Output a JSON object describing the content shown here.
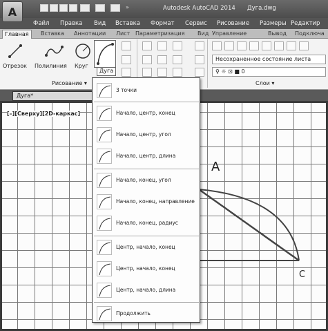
{
  "title": {
    "app": "Autodesk AutoCAD 2014",
    "file": "Дуга.dwg"
  },
  "menu": [
    "Файл",
    "Правка",
    "Вид",
    "Вставка",
    "Формат",
    "Сервис",
    "Рисование",
    "Размеры",
    "Редактир"
  ],
  "ribbon_tabs": [
    "Главная",
    "Вставка",
    "Аннотации",
    "Лист",
    "Параметризация",
    "Вид",
    "Управление",
    "Вывод",
    "Подключа"
  ],
  "ribbon": {
    "draw_tools": [
      "Отрезок",
      "Полилиния",
      "Круг",
      "Дуга"
    ],
    "panel_draw": "Рисование ▾",
    "layer_state": "Несохраненное состояние листа",
    "layer_value": "0",
    "panel_layers": "Слои ▾"
  },
  "document_tab": "Дуга*",
  "viewport_label": "[–][Сверху][2D-каркас]",
  "arc_menu": [
    "3 точки",
    "Начало, центр, конец",
    "Начало, центр, угол",
    "Начало, центр, длина",
    "Начало, конец, угол",
    "Начало, конец, направление",
    "Начало, конец, радиус",
    "Центр, начало, конец",
    "Центр, начало, конец",
    "Центр, начало, длина",
    "Продолжить"
  ],
  "drawing_labels": {
    "a": "A",
    "c": "C"
  }
}
